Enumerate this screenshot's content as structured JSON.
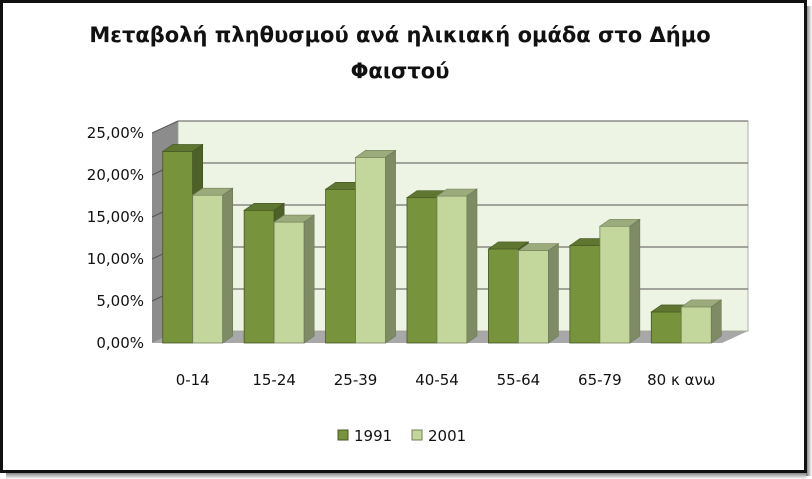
{
  "chart_data": {
    "type": "bar",
    "title_lines": [
      "Μεταβολή πληθυσμού ανά ηλικιακή ομάδα στο Δήμο",
      "Φαιστού"
    ],
    "categories": [
      "0-14",
      "15-24",
      "25-39",
      "40-54",
      "55-64",
      "65-79",
      "80 κ ανω"
    ],
    "series": [
      {
        "name": "1991",
        "values": [
          22.8,
          15.8,
          18.3,
          17.3,
          11.2,
          11.6,
          3.7
        ],
        "color": "#77933c"
      },
      {
        "name": "2001",
        "values": [
          17.6,
          14.4,
          22.1,
          17.5,
          11.0,
          13.9,
          4.3
        ],
        "color": "#c3d69b"
      }
    ],
    "y_tick_labels": [
      "0,00%",
      "5,00%",
      "10,00%",
      "15,00%",
      "20,00%",
      "25,00%"
    ],
    "ylim": [
      0,
      25
    ],
    "grid": true,
    "legend_position": "bottom",
    "plot_background": "#eef4e4",
    "frame_color": "#111111"
  }
}
